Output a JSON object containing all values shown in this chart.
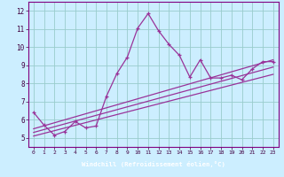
{
  "title": "",
  "xlabel": "Windchill (Refroidissement éolien,°C)",
  "bg_color": "#cceeff",
  "plot_bg_color": "#cceeff",
  "line_color": "#993399",
  "grid_color": "#99cccc",
  "xlim": [
    -0.5,
    23.5
  ],
  "ylim": [
    4.5,
    12.5
  ],
  "xticks": [
    0,
    1,
    2,
    3,
    4,
    5,
    6,
    7,
    8,
    9,
    10,
    11,
    12,
    13,
    14,
    15,
    16,
    17,
    18,
    19,
    20,
    21,
    22,
    23
  ],
  "yticks": [
    5,
    6,
    7,
    8,
    9,
    10,
    11,
    12
  ],
  "series1_x": [
    0,
    1,
    2,
    3,
    4,
    5,
    6,
    7,
    8,
    9,
    10,
    11,
    12,
    13,
    14,
    15,
    16,
    17,
    18,
    19,
    20,
    21,
    22,
    23
  ],
  "series1_y": [
    6.4,
    5.7,
    5.15,
    5.35,
    5.9,
    5.55,
    5.65,
    7.3,
    8.55,
    9.45,
    11.05,
    11.85,
    10.9,
    10.15,
    9.55,
    8.35,
    9.3,
    8.3,
    8.3,
    8.45,
    8.2,
    8.8,
    9.2,
    9.2
  ],
  "series2_x": [
    0,
    23
  ],
  "series2_y": [
    5.5,
    9.3
  ],
  "series3_x": [
    0,
    23
  ],
  "series3_y": [
    5.3,
    8.9
  ],
  "series4_x": [
    0,
    23
  ],
  "series4_y": [
    5.1,
    8.5
  ],
  "xlabel_bg": "#800080",
  "xlabel_fg": "#ffffff",
  "tick_color": "#400040",
  "spine_color": "#800080"
}
